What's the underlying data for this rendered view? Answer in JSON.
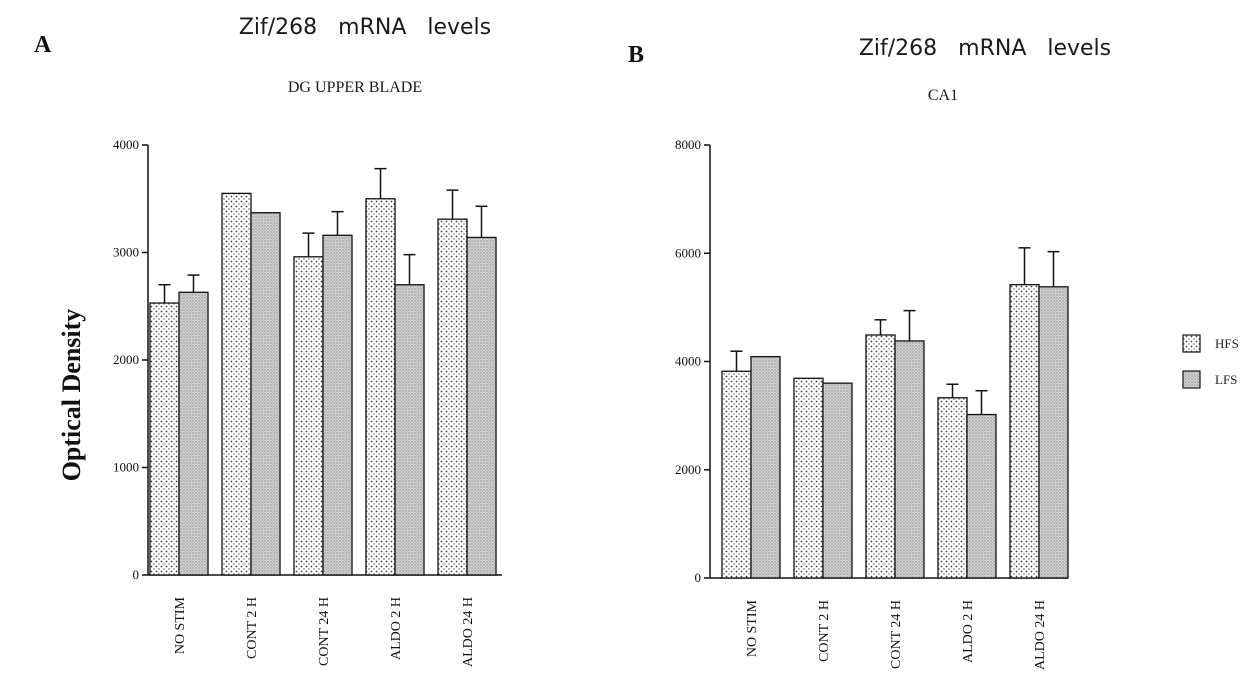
{
  "ylabel": "Optical Density",
  "colors": {
    "hfs_pattern": "#3a3a3a",
    "lfs_pattern": "#9a9a9a",
    "axis": "#111111"
  },
  "legend": {
    "items": [
      "HFS",
      "LFS"
    ],
    "placement": "right"
  },
  "chart_data": [
    {
      "panel": "A",
      "type": "bar",
      "title": "Zif/268   mRNA   levels",
      "subtitle": "DG UPPER BLADE",
      "ylim": [
        0,
        4000
      ],
      "yticks": [
        0,
        1000,
        2000,
        3000,
        4000
      ],
      "categories": [
        "NO STIM",
        "CONT 2 H",
        "CONT 24 H",
        "ALDO 2 H",
        "ALDO 24 H"
      ],
      "series": [
        {
          "name": "HFS",
          "values": [
            2530,
            3550,
            2960,
            3500,
            3310
          ],
          "errors": [
            170,
            0,
            220,
            280,
            270
          ]
        },
        {
          "name": "LFS",
          "values": [
            2630,
            3370,
            3160,
            2700,
            3140
          ],
          "errors": [
            160,
            0,
            220,
            280,
            290
          ]
        }
      ]
    },
    {
      "panel": "B",
      "type": "bar",
      "title": "Zif/268   mRNA   levels",
      "subtitle": "CA1",
      "ylim": [
        0,
        8000
      ],
      "yticks": [
        0,
        2000,
        4000,
        6000,
        8000
      ],
      "categories": [
        "NO STIM",
        "CONT 2 H",
        "CONT 24 H",
        "ALDO 2 H",
        "ALDO 24 H"
      ],
      "series": [
        {
          "name": "HFS",
          "values": [
            3820,
            3690,
            4490,
            3330,
            5420
          ],
          "errors": [
            370,
            0,
            280,
            250,
            680
          ]
        },
        {
          "name": "LFS",
          "values": [
            4090,
            3600,
            4380,
            3020,
            5380
          ],
          "errors": [
            0,
            0,
            560,
            440,
            650
          ]
        }
      ]
    }
  ]
}
